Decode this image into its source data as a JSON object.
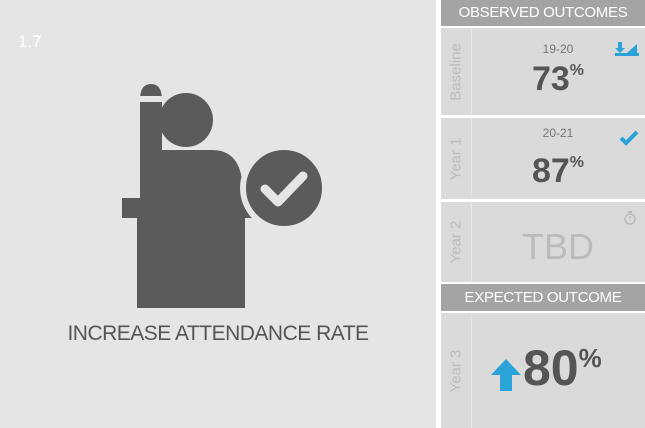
{
  "badge": "1.7",
  "title": "INCREASE ATTENDANCE RATE",
  "observed_header": "OBSERVED OUTCOMES",
  "expected_header": "EXPECTED OUTCOME",
  "rows": [
    {
      "label": "Baseline",
      "period": "19-20",
      "value": "73",
      "unit": "%"
    },
    {
      "label": "Year 1",
      "period": "20-21",
      "value": "87",
      "unit": "%"
    },
    {
      "label": "Year 2",
      "value": "TBD"
    }
  ],
  "expected": {
    "label": "Year 3",
    "value": "80",
    "unit": "%"
  }
}
